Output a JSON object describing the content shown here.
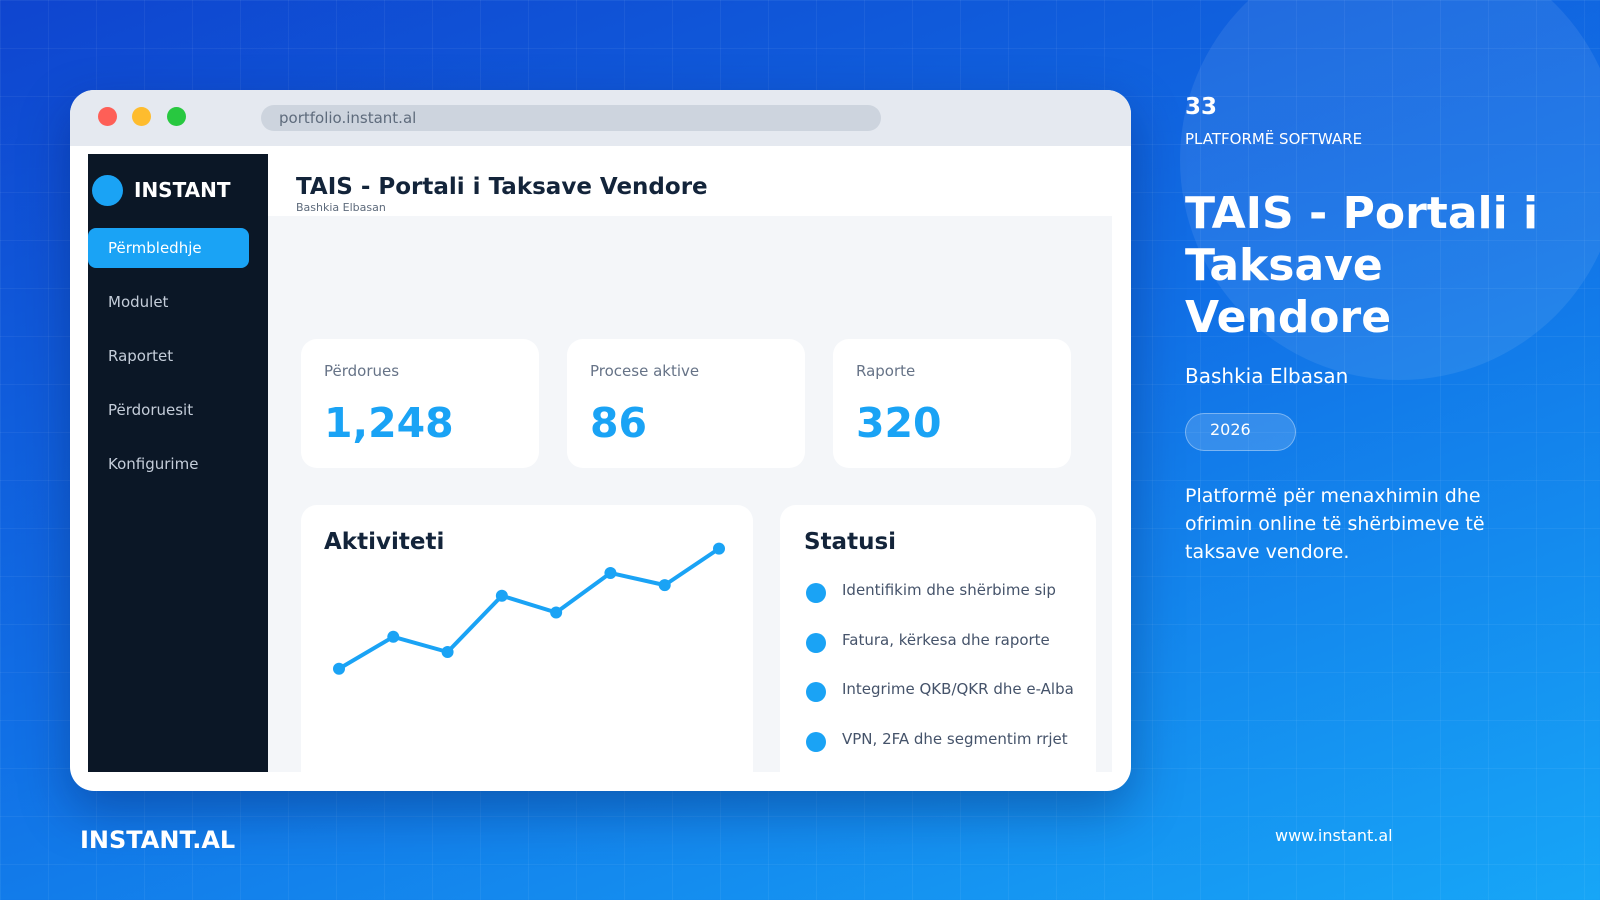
{
  "slide": {
    "number": "33",
    "category": "PLATFORMË SOFTWARE",
    "title": "TAIS - Portali i Taksave Vendore",
    "client": "Bashkia Elbasan",
    "year": "2026",
    "description": "Platformë për menaxhimin dhe ofrimin online të shërbimeve të taksave vendore.",
    "brand": "INSTANT.AL",
    "website": "www.instant.al"
  },
  "browser": {
    "url": "portfolio.instant.al"
  },
  "app": {
    "logo": "INSTANT",
    "nav": [
      "Përmbledhje",
      "Modulet",
      "Raportet",
      "Përdoruesit",
      "Konfigurime"
    ],
    "active_nav": 0,
    "title": "TAIS - Portali i Taksave Vendore",
    "subtitle": "Bashkia Elbasan",
    "stats": [
      {
        "label": "Përdorues",
        "value": "1,248"
      },
      {
        "label": "Procese aktive",
        "value": "86"
      },
      {
        "label": "Raporte",
        "value": "320"
      }
    ],
    "activity": {
      "title": "Aktiviteti",
      "values": [
        14,
        35,
        25,
        62,
        51,
        77,
        69,
        93
      ],
      "color": "#1aa3f5"
    },
    "status": {
      "title": "Statusi",
      "items": [
        "Identifikim dhe shërbime sip",
        "Fatura, kërkesa dhe raporte",
        "Integrime QKB/QKR dhe e-Alba",
        "VPN, 2FA dhe segmentim rrjet"
      ]
    }
  }
}
